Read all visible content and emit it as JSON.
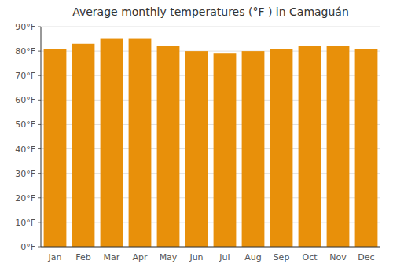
{
  "chart_data": {
    "type": "bar",
    "title": "Average monthly temperatures (°F ) in Camaguán",
    "categories": [
      "Jan",
      "Feb",
      "Mar",
      "Apr",
      "May",
      "Jun",
      "Jul",
      "Aug",
      "Sep",
      "Oct",
      "Nov",
      "Dec"
    ],
    "values": [
      81,
      83,
      85,
      85,
      82,
      80,
      79,
      80,
      81,
      82,
      82,
      81
    ],
    "color": "#E8900A",
    "ylim": [
      0,
      90
    ],
    "yticks": [
      {
        "value": 0,
        "label": "0°F"
      },
      {
        "value": 10,
        "label": "10°F"
      },
      {
        "value": 20,
        "label": "20°F"
      },
      {
        "value": 30,
        "label": "30°F"
      },
      {
        "value": 40,
        "label": "40°F"
      },
      {
        "value": 50,
        "label": "50°F"
      },
      {
        "value": 60,
        "label": "60°F"
      },
      {
        "value": 70,
        "label": "70°F"
      },
      {
        "value": 80,
        "label": "80°F"
      },
      {
        "value": 90,
        "label": "90°F"
      }
    ],
    "grid": true
  }
}
